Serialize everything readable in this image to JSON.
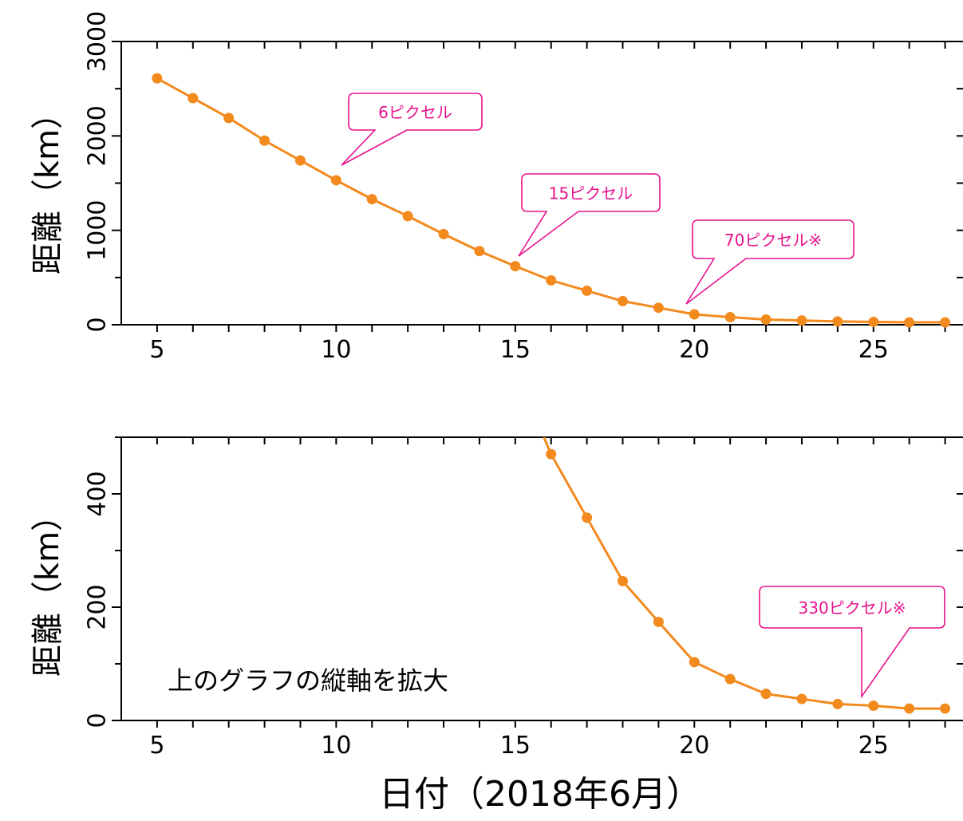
{
  "chart_data": [
    {
      "type": "line",
      "ylabel": "距離（km）",
      "xlabel": "",
      "xlim": [
        4,
        27.5
      ],
      "ylim": [
        0,
        3000
      ],
      "xticks": [
        5,
        10,
        15,
        20,
        25
      ],
      "yticks": [
        0,
        1000,
        2000,
        3000
      ],
      "x": [
        5,
        6,
        7,
        8,
        9,
        10,
        11,
        12,
        13,
        14,
        15,
        16,
        17,
        18,
        19,
        20,
        21,
        22,
        23,
        24,
        25,
        26,
        27
      ],
      "series": [
        {
          "values": [
            2610,
            2400,
            2190,
            1950,
            1740,
            1530,
            1330,
            1150,
            960,
            780,
            620,
            470,
            360,
            250,
            180,
            110,
            80,
            55,
            45,
            35,
            30,
            25,
            25
          ]
        }
      ],
      "annotations": [
        {
          "text": "6ピクセル",
          "x": 10,
          "y": 1700
        },
        {
          "text": "15ピクセル",
          "x": 15,
          "y": 720
        },
        {
          "text": "70ピクセル※",
          "x": 20,
          "y": 230
        }
      ],
      "line_color": "#f28a1e",
      "callout_color": "#e6128c"
    },
    {
      "type": "line",
      "ylabel": "距離（km）",
      "xlabel": "日付（2018年6月）",
      "note": "上のグラフの縦軸を拡大",
      "xlim": [
        4,
        27.5
      ],
      "ylim": [
        0,
        500
      ],
      "xticks": [
        5,
        10,
        15,
        20,
        25
      ],
      "yticks": [
        0,
        200,
        400
      ],
      "x": [
        15.8,
        16,
        17,
        18,
        19,
        20,
        21,
        22,
        23,
        24,
        25,
        26,
        27
      ],
      "series": [
        {
          "values": [
            500,
            470,
            358,
            246,
            174,
            103,
            73,
            47,
            38,
            29,
            26,
            21,
            21
          ]
        }
      ],
      "annotations": [
        {
          "text": "330ピクセル※",
          "x": 25,
          "y": 40
        }
      ],
      "line_color": "#f28a1e",
      "callout_color": "#e6128c"
    }
  ]
}
